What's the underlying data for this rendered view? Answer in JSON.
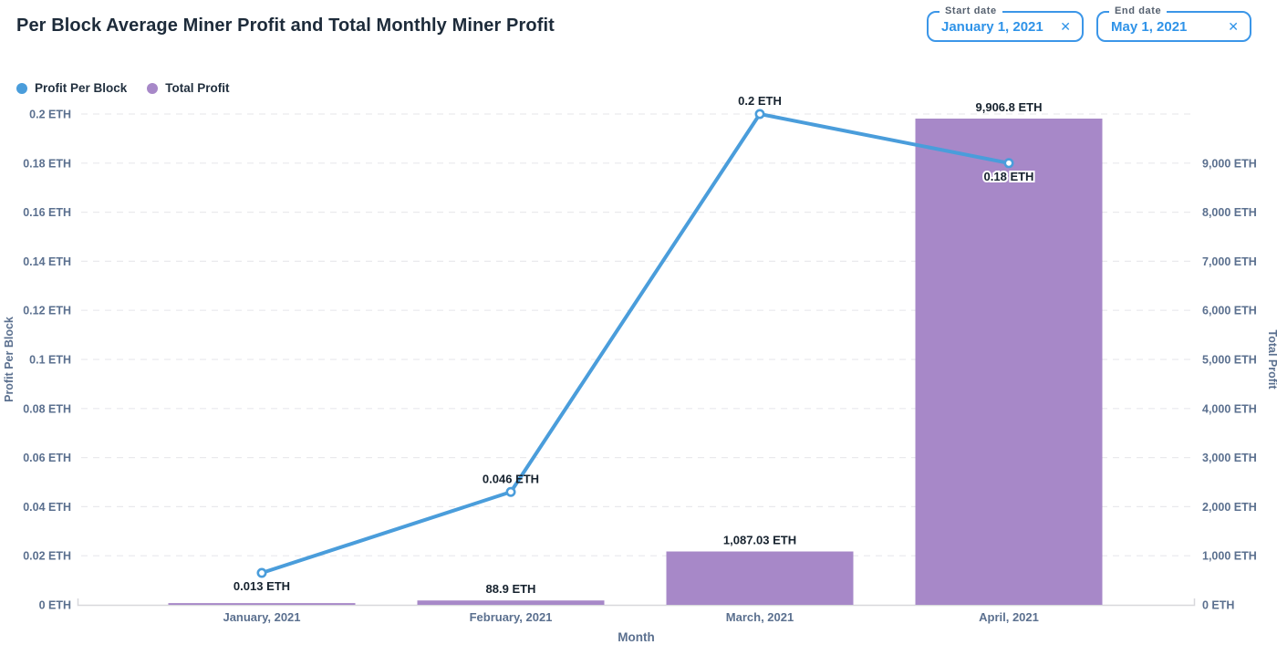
{
  "header": {
    "title": "Per Block Average Miner Profit and Total Monthly Miner Profit"
  },
  "filters": {
    "start": {
      "label": "Start date",
      "value": "January 1, 2021"
    },
    "end": {
      "label": "End date",
      "value": "May 1, 2021"
    },
    "clear_icon": "✕"
  },
  "colors": {
    "line_blue": "#4a9ddb",
    "bar_purple": "#a788c8",
    "dark_text": "#16222e",
    "axis_text": "#5b708f",
    "gridline": "#e9e9ed",
    "axis_line": "#d8d8dc",
    "input_blue": "#3b96e8"
  },
  "chart_data": {
    "type": "bar",
    "subtype": "combo-line-and-bar",
    "title": "Per Block Average Miner Profit and Total Monthly Miner Profit",
    "categories": [
      "January, 2021",
      "February, 2021",
      "March, 2021",
      "April, 2021"
    ],
    "series": [
      {
        "name": "Profit Per Block",
        "type": "line",
        "axis": "left",
        "color": "#4a9ddb",
        "values": [
          0.013,
          0.046,
          0.2,
          0.18
        ],
        "labels": [
          "0.013 ETH",
          "0.046 ETH",
          "0.2 ETH",
          "0.18 ETH"
        ]
      },
      {
        "name": "Total Profit",
        "type": "bar",
        "axis": "right",
        "color": "#a788c8",
        "values": [
          35,
          88.9,
          1087.03,
          9906.8
        ],
        "labels": [
          "",
          "88.9 ETH",
          "1,087.03 ETH",
          "9,906.8 ETH"
        ]
      }
    ],
    "xlabel": "Month",
    "left_axis": {
      "label": "Profit Per Block",
      "min": 0,
      "max": 0.2,
      "tick_values": [
        0,
        0.02,
        0.04,
        0.06,
        0.08,
        0.1,
        0.12,
        0.14,
        0.16,
        0.18,
        0.2
      ],
      "ticks": [
        "0 ETH",
        "0.02 ETH",
        "0.04 ETH",
        "0.06 ETH",
        "0.08 ETH",
        "0.1 ETH",
        "0.12 ETH",
        "0.14 ETH",
        "0.16 ETH",
        "0.18 ETH",
        "0.2 ETH"
      ]
    },
    "right_axis": {
      "label": "Total Profit",
      "min": 0,
      "max": 10000,
      "tick_values": [
        0,
        1000,
        2000,
        3000,
        4000,
        5000,
        6000,
        7000,
        8000,
        9000
      ],
      "ticks": [
        "0 ETH",
        "1,000 ETH",
        "2,000 ETH",
        "3,000 ETH",
        "4,000 ETH",
        "5,000 ETH",
        "6,000 ETH",
        "7,000 ETH",
        "8,000 ETH",
        "9,000 ETH"
      ]
    },
    "grid": "dashed-horizontal",
    "legend_position": "top-left"
  }
}
